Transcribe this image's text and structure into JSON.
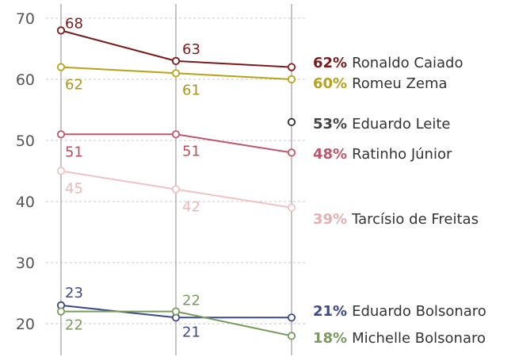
{
  "chart_data": {
    "type": "line",
    "x": [
      "",
      "",
      ""
    ],
    "ylim": [
      17,
      70
    ],
    "yticks": [
      20,
      30,
      40,
      50,
      60,
      70
    ],
    "grid": true,
    "series": [
      {
        "name": "Ronaldo Caiado",
        "values": [
          68,
          63,
          62
        ],
        "end_label": "62%",
        "color": "#7a1b1b",
        "point_labels": [
          "68",
          "63",
          ""
        ]
      },
      {
        "name": "Romeu Zema",
        "values": [
          62,
          61,
          60
        ],
        "end_label": "60%",
        "color": "#b5a41a",
        "point_labels": [
          "62",
          "61",
          ""
        ]
      },
      {
        "name": "Eduardo Leite",
        "values": [
          null,
          null,
          53
        ],
        "end_label": "53%",
        "color": "#333333",
        "point_labels": [
          "",
          "",
          ""
        ]
      },
      {
        "name": "Ratinho Júnior",
        "values": [
          51,
          51,
          48
        ],
        "end_label": "48%",
        "color": "#c0566b",
        "point_labels": [
          "51",
          "51",
          ""
        ]
      },
      {
        "name": "Tarcísio de Freitas",
        "values": [
          45,
          42,
          39
        ],
        "end_label": "39%",
        "color": "#efc3c3",
        "point_labels": [
          "45",
          "42",
          ""
        ]
      },
      {
        "name": "Eduardo Bolsonaro",
        "values": [
          23,
          21,
          21
        ],
        "end_label": "21%",
        "color": "#3c4a86",
        "point_labels": [
          "23",
          "21",
          ""
        ]
      },
      {
        "name": "Michelle Bolsonaro",
        "values": [
          22,
          22,
          18
        ],
        "end_label": "18%",
        "color": "#7a9a5e",
        "point_labels": [
          "22",
          "22",
          ""
        ]
      }
    ]
  }
}
